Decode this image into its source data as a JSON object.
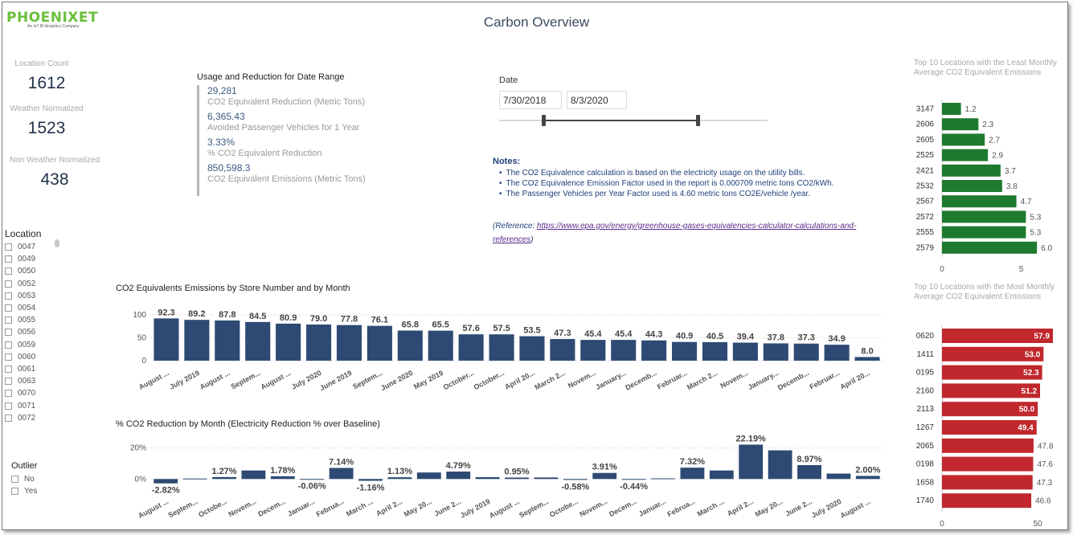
{
  "header": {
    "logo_text": "PHOENIXET",
    "logo_tagline": "An IoT BI Analytics Company",
    "title": "Carbon Overview"
  },
  "kpis": {
    "location_count_label": "Location Count",
    "location_count": "1612",
    "weather_normalized_label": "Weather Normalized",
    "weather_normalized": "1523",
    "non_weather_normalized_label": "Non Weather Normalized",
    "non_weather_normalized": "438"
  },
  "usage": {
    "title": "Usage and Reduction for Date Range",
    "items": [
      {
        "value": "29,281",
        "desc": "CO2 Equivalent Reduction (Metric Tons)"
      },
      {
        "value": "6,365.43",
        "desc": "Avoided Passenger Vehicles for 1 Year"
      },
      {
        "value": "3.33%",
        "desc": "% CO2 Equivalent Reduction"
      },
      {
        "value": "850,598.3",
        "desc": "CO2 Equivalent Emissions (Metric Tons)"
      }
    ]
  },
  "date_filter": {
    "label": "Date",
    "start": "7/30/2018",
    "end": "8/3/2020"
  },
  "notes": {
    "title": "Notes:",
    "items": [
      "The CO2 Equivalence calculation is based on the electricity usage on the utility bills.",
      "The CO2 Equivalence Emission Factor used in the report is 0.000709 metric tons CO2/kWh.",
      "The Passenger Vehicles per Year Factor used is 4.60 metric tons CO2E/vehicle /year."
    ],
    "reference_prefix": "(Reference: ",
    "reference_link": "https://www.epa.gov/energy/greenhouse-gases-equivalencies-calculator-calculations-and-references",
    "reference_suffix": ")"
  },
  "location_filter": {
    "title": "Location",
    "items": [
      "0047",
      "0049",
      "0050",
      "0052",
      "0053",
      "0054",
      "0055",
      "0056",
      "0059",
      "0060",
      "0061",
      "0063",
      "0070",
      "0071",
      "0072"
    ]
  },
  "outlier_filter": {
    "title": "Outlier",
    "items": [
      "No",
      "Yes"
    ]
  },
  "colors": {
    "navy": "#2e4a74",
    "green": "#1e7a2e",
    "red": "#c0282d",
    "logo_green": "#6abf3a"
  },
  "chart_data": [
    {
      "id": "emissions",
      "type": "bar",
      "title": "CO2 Equivalents Emissions by Store Number and by Month",
      "yticks": [
        0,
        50,
        100
      ],
      "ylim": [
        0,
        100
      ],
      "grid": true,
      "categories": [
        "August ...",
        "July 2019",
        "August ...",
        "Septem...",
        "August ...",
        "July 2020",
        "June 2019",
        "Septem...",
        "June 2020",
        "May 2019",
        "October...",
        "October...",
        "April 20...",
        "March 2...",
        "Novem...",
        "January...",
        "Decemb...",
        "Februar...",
        "March 2...",
        "Novem...",
        "January...",
        "Decemb...",
        "Februar...",
        "April 20..."
      ],
      "values": [
        92.3,
        89.2,
        87.8,
        84.5,
        80.9,
        79.0,
        77.8,
        76.1,
        65.8,
        65.5,
        57.6,
        57.5,
        53.5,
        47.3,
        45.4,
        45.4,
        44.3,
        40.9,
        40.5,
        39.4,
        37.8,
        37.3,
        34.9,
        8.0
      ],
      "labels": [
        "92.3",
        "89.2",
        "87.8",
        "84.5",
        "80.9",
        "79.0",
        "77.8",
        "76.1",
        "65.8",
        "65.5",
        "57.6",
        "57.5",
        "53.5",
        "47.3",
        "45.4",
        "45.4",
        "44.3",
        "40.9",
        "40.5",
        "39.4",
        "37.8",
        "37.3",
        "34.9",
        "8.0"
      ]
    },
    {
      "id": "reduction",
      "type": "bar",
      "title": "% CO2 Reduction by Month (Electricity Reduction % over Baseline)",
      "ytick_labels": [
        "0%",
        "20%"
      ],
      "yticks": [
        0,
        20
      ],
      "ylim": [
        -4,
        24
      ],
      "grid": true,
      "categories": [
        "August ...",
        "Septem...",
        "Octobe...",
        "Novem...",
        "Decem...",
        "Januar...",
        "Februa...",
        "March ...",
        "April 2...",
        "May 20...",
        "June 2...",
        "July 2019",
        "August ...",
        "Septem...",
        "Octobe...",
        "Novem...",
        "Decem...",
        "Januar...",
        "Februa...",
        "March ...",
        "April 2...",
        "May 20...",
        "June 2...",
        "July 2020",
        "August ..."
      ],
      "values": [
        -2.82,
        0.3,
        1.27,
        5.5,
        1.78,
        -0.06,
        7.14,
        -1.16,
        1.13,
        4.2,
        4.79,
        1.2,
        0.95,
        1.0,
        -0.58,
        3.91,
        -0.44,
        0.4,
        7.32,
        5.5,
        22.19,
        18.5,
        8.97,
        3.5,
        2.0
      ],
      "labels": [
        "-2.82%",
        "",
        "1.27%",
        "",
        "1.78%",
        "-0.06%",
        "7.14%",
        "-1.16%",
        "1.13%",
        "",
        "4.79%",
        "",
        "0.95%",
        "",
        "-0.58%",
        "3.91%",
        "-0.44%",
        "",
        "7.32%",
        "",
        "22.19%",
        "",
        "8.97%",
        "",
        "2.00%"
      ]
    },
    {
      "id": "least",
      "type": "bar",
      "orientation": "horizontal",
      "title": "Top 10 Locations with the Least Monthly Average CO2 Equivalent Emissions",
      "categories": [
        "3147",
        "2606",
        "2605",
        "2525",
        "2421",
        "2532",
        "2567",
        "2572",
        "2555",
        "2579"
      ],
      "values": [
        1.2,
        2.3,
        2.7,
        2.9,
        3.7,
        3.8,
        4.7,
        5.3,
        5.3,
        6.0
      ],
      "labels": [
        "1.2",
        "2.3",
        "2.7",
        "2.9",
        "3.7",
        "3.8",
        "4.7",
        "5.3",
        "5.3",
        "6.0"
      ],
      "xticks": [
        0,
        5
      ],
      "xlim": [
        0,
        6.6
      ]
    },
    {
      "id": "most",
      "type": "bar",
      "orientation": "horizontal",
      "title": "Top 10 Locations with the Most Monthly Average CO2 Equivalent Emissions",
      "categories": [
        "0620",
        "1411",
        "0195",
        "2160",
        "2113",
        "1267",
        "2065",
        "0198",
        "1658",
        "1740"
      ],
      "values": [
        57.9,
        53.0,
        52.3,
        51.2,
        50.0,
        49.4,
        47.8,
        47.6,
        47.3,
        46.6
      ],
      "labels": [
        "57.9",
        "53.0",
        "52.3",
        "51.2",
        "50.0",
        "49.4",
        "47.8",
        "47.6",
        "47.3",
        "46.6"
      ],
      "xticks": [
        0,
        50
      ],
      "xlim": [
        0,
        60
      ]
    }
  ]
}
